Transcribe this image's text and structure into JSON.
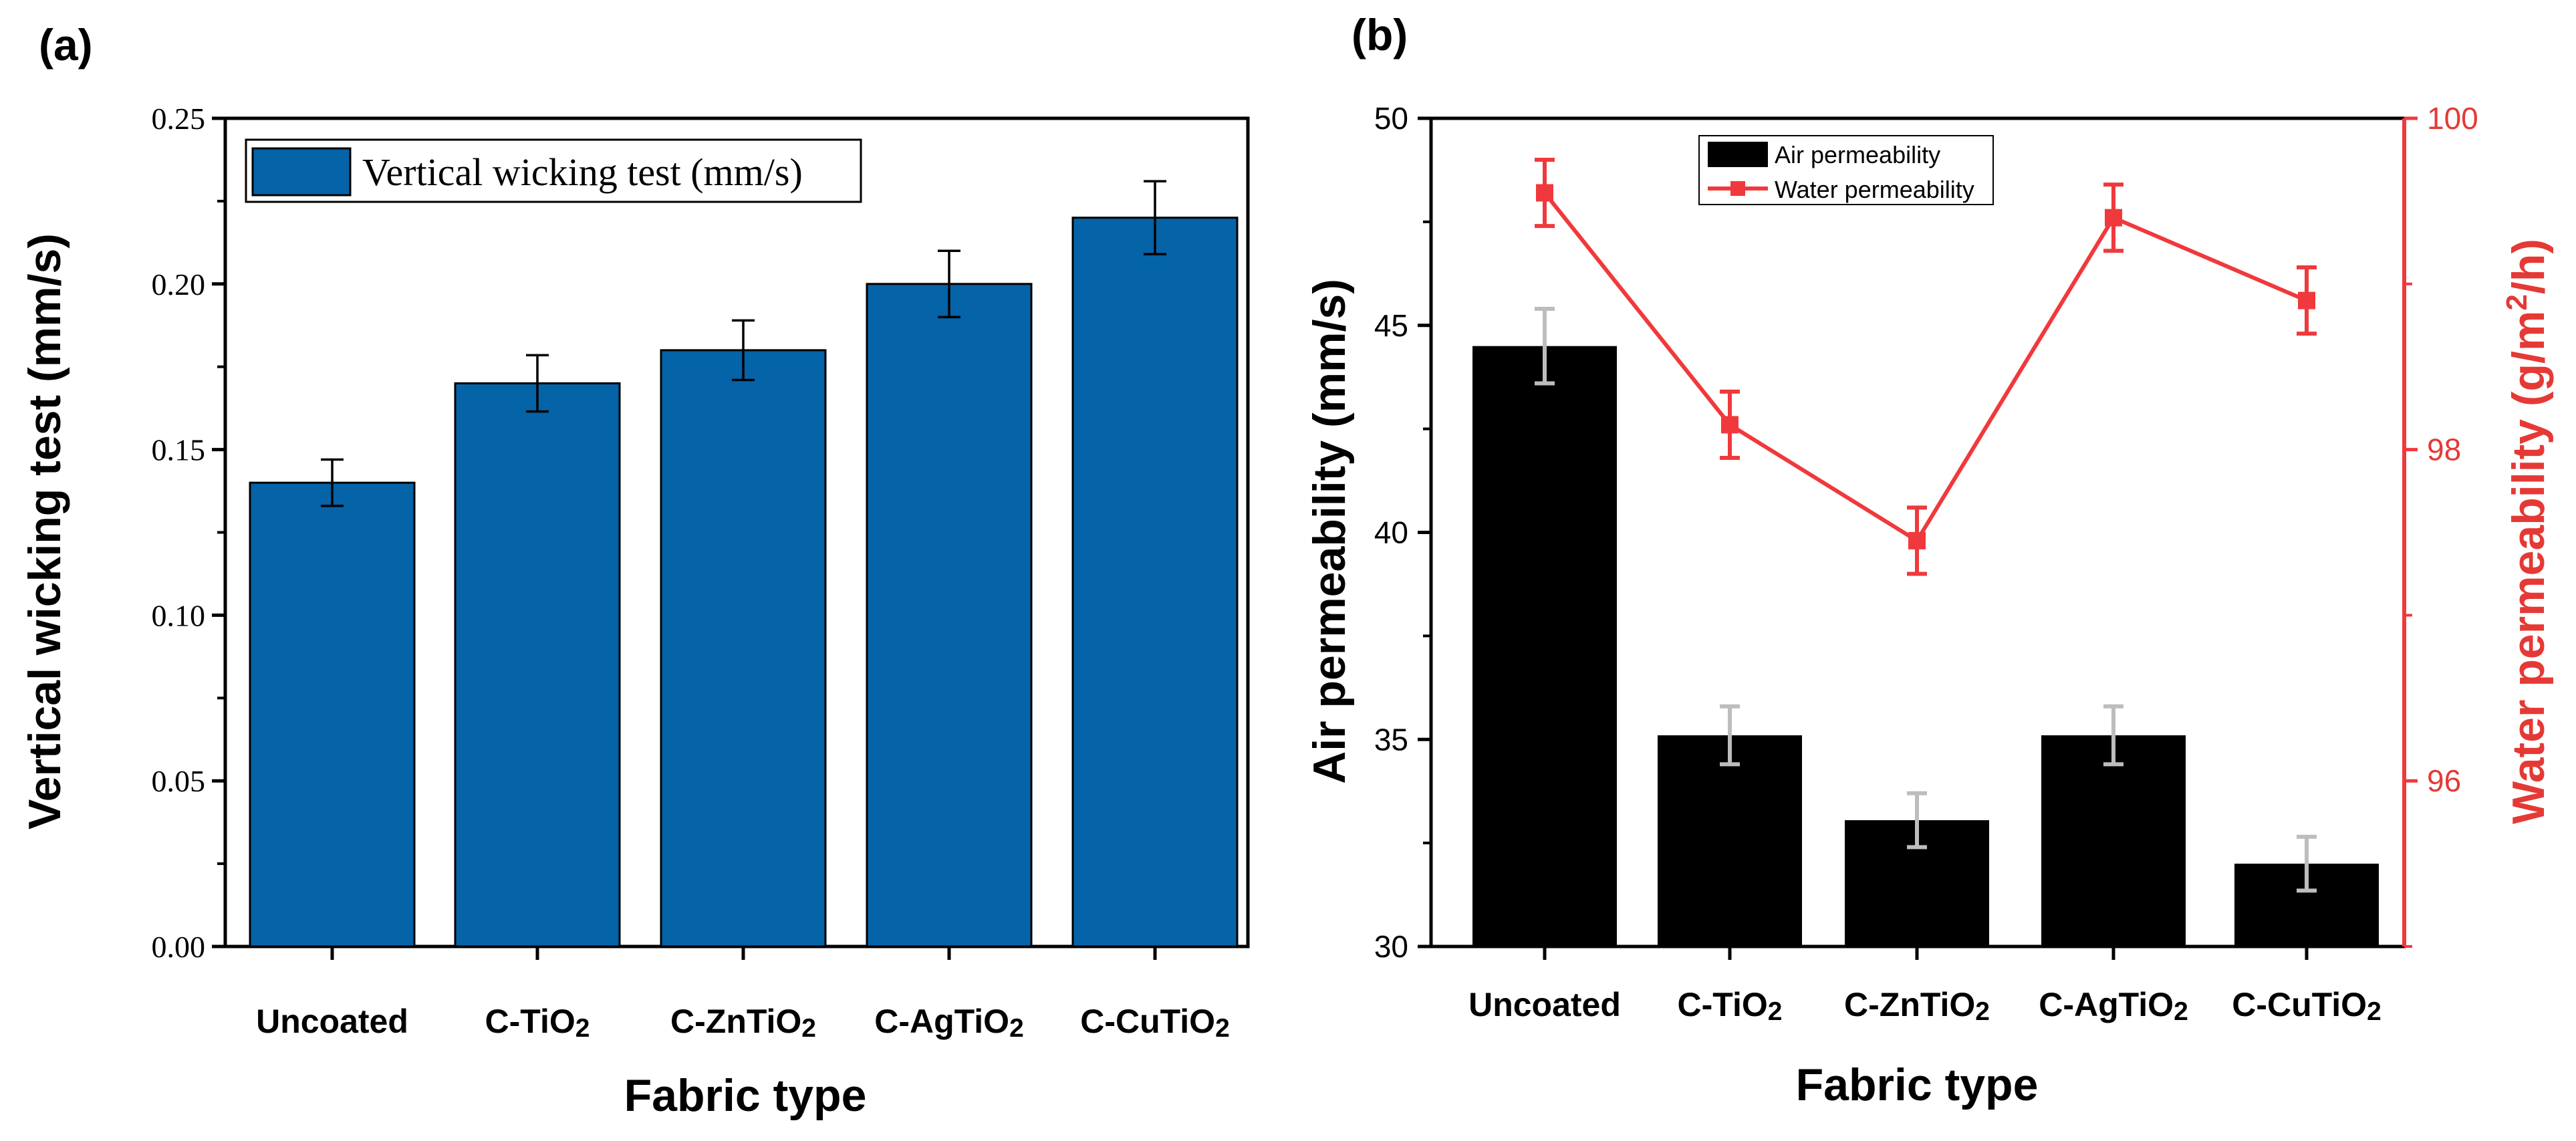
{
  "colors": {
    "bar_a": "#0563A8",
    "bar_b": "#000000",
    "line_b": "#F0393C",
    "err_a": "#000000",
    "err_b": "#BDBDBD",
    "axis_red": "#E53935"
  },
  "chart_data": [
    {
      "panel_label": "(a)",
      "type": "bar",
      "title": "",
      "xlabel": "Fabric type",
      "ylabel": "Vertical wicking test (mm/s)",
      "categories": [
        {
          "main": "Uncoated",
          "sub": ""
        },
        {
          "main": "C-TiO",
          "sub": "2"
        },
        {
          "main": "C-ZnTiO",
          "sub": "2"
        },
        {
          "main": "C-AgTiO",
          "sub": "2"
        },
        {
          "main": "C-CuTiO",
          "sub": "2"
        }
      ],
      "ylim": [
        0,
        0.25
      ],
      "yticks": [
        "0.00",
        "0.05",
        "0.10",
        "0.15",
        "0.20",
        "0.25"
      ],
      "series": [
        {
          "name": "Vertical wicking test (mm/s)",
          "values": [
            0.14,
            0.17,
            0.18,
            0.2,
            0.22
          ],
          "errors": [
            0.007,
            0.0085,
            0.009,
            0.01,
            0.011
          ]
        }
      ],
      "legend": {
        "position": "top-left",
        "label": "Vertical wicking test (mm/s)"
      }
    },
    {
      "panel_label": "(b)",
      "type": "bar+line",
      "title": "",
      "xlabel": "Fabric type",
      "ylabel": "Air permeability (mm/s)",
      "ylabel_right": "Water permeability (g/m²/h)",
      "ylabel_right_parts": {
        "prefix": "Water permeability (g/m",
        "sup": "2",
        "suffix": "/h)"
      },
      "categories": [
        {
          "main": "Uncoated",
          "sub": ""
        },
        {
          "main": "C-TiO",
          "sub": "2"
        },
        {
          "main": "C-ZnTiO",
          "sub": "2"
        },
        {
          "main": "C-AgTiO",
          "sub": "2"
        },
        {
          "main": "C-CuTiO",
          "sub": "2"
        }
      ],
      "ylim": [
        30,
        50
      ],
      "yticks": [
        "30",
        "35",
        "40",
        "45",
        "50"
      ],
      "ylim_right": [
        95,
        100
      ],
      "yticks_right": [
        "96",
        "98",
        "100"
      ],
      "series": [
        {
          "name": "Air permeability",
          "type": "bar",
          "axis": "left",
          "values": [
            44.5,
            35.1,
            33.05,
            35.1,
            32.0
          ],
          "errors": [
            0.9,
            0.7,
            0.65,
            0.7,
            0.65
          ]
        },
        {
          "name": "Water permeability",
          "type": "line",
          "axis": "right",
          "values": [
            99.55,
            98.15,
            97.45,
            99.4,
            98.9
          ],
          "errors": [
            0.2,
            0.2,
            0.2,
            0.2,
            0.2
          ]
        }
      ],
      "legend": {
        "position": "top-center",
        "labels": [
          "Air permeability",
          "Water permeability"
        ]
      }
    }
  ]
}
